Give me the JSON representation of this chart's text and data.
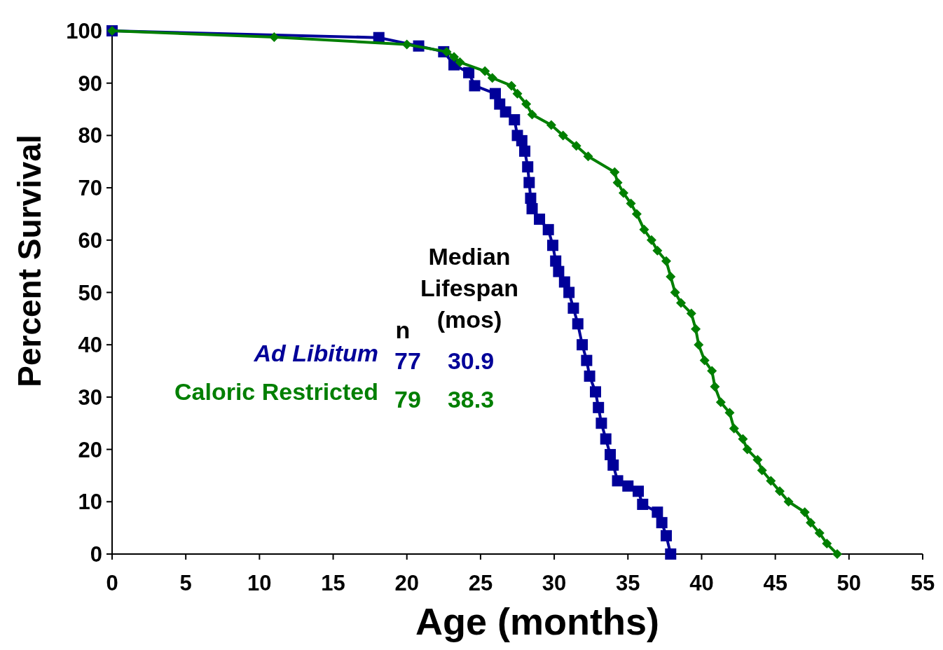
{
  "chart_data": {
    "type": "line",
    "xlabel": "Age (months)",
    "ylabel": "Percent Survival",
    "xlim": [
      0,
      55
    ],
    "xticks": [
      0,
      5,
      10,
      15,
      20,
      25,
      30,
      35,
      40,
      45,
      50,
      55
    ],
    "ylim": [
      0,
      100
    ],
    "yticks": [
      0,
      10,
      20,
      30,
      40,
      50,
      60,
      70,
      80,
      90,
      100
    ],
    "grid": false,
    "legend": "left",
    "line_style": "solid",
    "annotations": [
      "Median Lifespan (mos)",
      "n",
      "77",
      "30.9",
      "79",
      "38.3"
    ],
    "series": [
      {
        "name": "Ad Libitum",
        "color": "#000099",
        "marker": "square",
        "x": [
          0,
          18.1,
          20.8,
          22.5,
          23.2,
          24.2,
          24.6,
          26,
          26.3,
          26.7,
          27.3,
          27.5,
          27.8,
          28,
          28.2,
          28.3,
          28.4,
          28.5,
          29,
          29.6,
          29.9,
          30.1,
          30.3,
          30.7,
          31,
          31.3,
          31.6,
          31.9,
          32.2,
          32.4,
          32.8,
          33,
          33.2,
          33.5,
          33.8,
          34,
          34.3,
          35,
          35.7,
          36,
          37,
          37.3,
          37.6,
          37.9
        ],
        "values": [
          100,
          98.7,
          97.1,
          96,
          93.5,
          92,
          89.5,
          88,
          86,
          84.5,
          83,
          80,
          79,
          77,
          74,
          71,
          68,
          66,
          64,
          62,
          59,
          56,
          54,
          52,
          50,
          47,
          44,
          40,
          37,
          34,
          31,
          28,
          25,
          22,
          19,
          17,
          14,
          13,
          12,
          9.5,
          8,
          6,
          3.5,
          0
        ]
      },
      {
        "name": "Caloric Restricted",
        "color": "#007f00",
        "marker": "diamond",
        "x": [
          0,
          11,
          20,
          22.7,
          23.2,
          23.6,
          25.3,
          25.8,
          27.1,
          27.5,
          28.1,
          28.5,
          29.8,
          30.6,
          31.5,
          32.3,
          34.1,
          34.3,
          34.7,
          35.2,
          35.6,
          36.1,
          36.6,
          37,
          37.6,
          37.9,
          38.2,
          38.6,
          39.3,
          39.6,
          39.8,
          40.2,
          40.7,
          40.9,
          41.3,
          41.9,
          42.2,
          42.8,
          43.1,
          43.8,
          44.1,
          44.7,
          45.3,
          45.9,
          47,
          47.4,
          48,
          48.5,
          49.2
        ],
        "values": [
          100,
          98.8,
          97.4,
          96,
          95,
          94,
          92.3,
          91,
          89.5,
          88,
          86,
          84,
          82,
          80,
          78,
          76,
          73,
          71,
          69,
          67,
          65,
          62,
          60,
          58,
          56,
          53,
          50,
          48,
          46,
          43,
          40,
          37,
          35,
          32,
          29,
          27,
          24,
          22,
          20,
          18,
          16,
          14,
          12,
          10,
          8,
          6,
          4,
          2,
          0
        ]
      }
    ]
  }
}
